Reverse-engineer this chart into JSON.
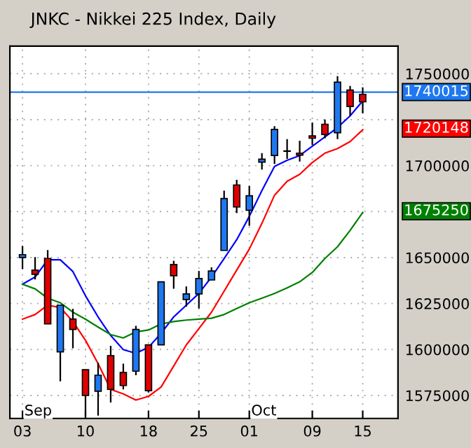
{
  "chart_data": {
    "type": "candlestick",
    "title": "JNKC - Nikkei 225 Index, Daily",
    "categories": [
      "03",
      null,
      null,
      null,
      null,
      "10",
      null,
      null,
      null,
      null,
      "18",
      null,
      null,
      null,
      "25",
      null,
      null,
      null,
      "01",
      null,
      null,
      null,
      null,
      "09",
      null,
      null,
      null,
      "15"
    ],
    "ohlc": [
      [
        1650000,
        1656400,
        1643700,
        1651600
      ],
      [
        1643200,
        1650300,
        1638100,
        1640900
      ],
      [
        1649500,
        1654100,
        1613900,
        1613900
      ],
      [
        1598700,
        1624100,
        1582700,
        1624100
      ],
      [
        1616500,
        1622100,
        1600700,
        1610900
      ],
      [
        1589000,
        1589000,
        1564000,
        1575000
      ],
      [
        1577300,
        1592800,
        1564000,
        1586000
      ],
      [
        1596600,
        1602000,
        1571200,
        1578300
      ],
      [
        1587500,
        1592300,
        1578300,
        1580400
      ],
      [
        1588200,
        1612900,
        1586000,
        1610900
      ],
      [
        1602500,
        1602500,
        1576600,
        1577600
      ],
      [
        1602500,
        1636800,
        1602500,
        1636800
      ],
      [
        1646200,
        1648300,
        1633000,
        1640100
      ],
      [
        1627200,
        1634300,
        1623300,
        1630200
      ],
      [
        1630200,
        1642700,
        1622300,
        1638600
      ],
      [
        1637800,
        1644700,
        1637800,
        1642700
      ],
      [
        1653900,
        1686400,
        1653900,
        1682100
      ],
      [
        1689500,
        1692300,
        1674200,
        1677500
      ],
      [
        1675700,
        1689000,
        1667300,
        1683600
      ],
      [
        1701900,
        1706800,
        1697900,
        1703500
      ],
      [
        1705500,
        1721500,
        1700900,
        1719700
      ],
      [
        1707800,
        1714400,
        1703700,
        1708000
      ],
      [
        1706800,
        1713600,
        1702200,
        1705700
      ],
      [
        1716200,
        1723500,
        1711300,
        1714900
      ],
      [
        1722500,
        1725100,
        1714900,
        1716900
      ],
      [
        1717900,
        1748700,
        1714400,
        1745400
      ],
      [
        1741100,
        1743400,
        1727100,
        1732200
      ],
      [
        1738800,
        1742600,
        1728400,
        1734700
      ]
    ],
    "colors": [
      "#1e78f0",
      "#e00000",
      "#e00000",
      "#1e78f0",
      "#e00000",
      "#e00000",
      "#1e78f0",
      "#e00000",
      "#e00000",
      "#1e78f0",
      "#e00000",
      "#1e78f0",
      "#e00000",
      "#1e78f0",
      "#1e78f0",
      "#1e78f0",
      "#1e78f0",
      "#e00000",
      "#1e78f0",
      "#1e78f0",
      "#1e78f0",
      "#1e78f0",
      "#e00000",
      "#e00000",
      "#e00000",
      "#1e78f0",
      "#e00000",
      "#e00000"
    ],
    "series": [
      {
        "type": "line",
        "color": "#0000ff",
        "values": [
          1635500,
          1639400,
          1648800,
          1648800,
          1642400,
          1629200,
          1617700,
          1607600,
          1599900,
          1597900,
          1601200,
          1608800,
          1617700,
          1624100,
          1630500,
          1639400,
          1649500,
          1659700,
          1672400,
          1686400,
          1699600,
          1702900,
          1705500,
          1710600,
          1715600,
          1720700,
          1727100,
          1735200
        ]
      },
      {
        "type": "line",
        "color": "#ff0000",
        "values": [
          1616500,
          1619000,
          1624100,
          1622800,
          1615200,
          1605000,
          1592300,
          1578300,
          1575800,
          1572500,
          1574500,
          1579600,
          1591000,
          1602500,
          1611400,
          1620300,
          1631700,
          1643200,
          1654600,
          1668600,
          1683900,
          1691500,
          1695300,
          1701700,
          1706800,
          1709300,
          1713100,
          1719500
        ]
      },
      {
        "type": "line",
        "color": "#008000",
        "values": [
          1635500,
          1633000,
          1627900,
          1625400,
          1620300,
          1616500,
          1612200,
          1608100,
          1606300,
          1609600,
          1610600,
          1613900,
          1615200,
          1616000,
          1616500,
          1617000,
          1619000,
          1622300,
          1625400,
          1627900,
          1630500,
          1633500,
          1636800,
          1641900,
          1649500,
          1655900,
          1664800,
          1674500
        ]
      }
    ],
    "ylim": [
      1562500,
      1765000
    ],
    "yticks": [
      1575000,
      1600000,
      1625000,
      1650000,
      {
        "value": 1675000,
        "label": null
      },
      1700000,
      {
        "value": 1725000,
        "label": null
      },
      1750000
    ],
    "grid": true,
    "ref_lines": [
      {
        "axis": "y",
        "value": 1740015,
        "label": "1740015",
        "color": "#1e78f0"
      }
    ],
    "annotations": [
      {
        "text": "1720148",
        "x": "15",
        "y": 1720148
      },
      {
        "text": "1675250",
        "x": "15",
        "y": 1675250
      },
      "Sep",
      "Oct"
    ]
  }
}
